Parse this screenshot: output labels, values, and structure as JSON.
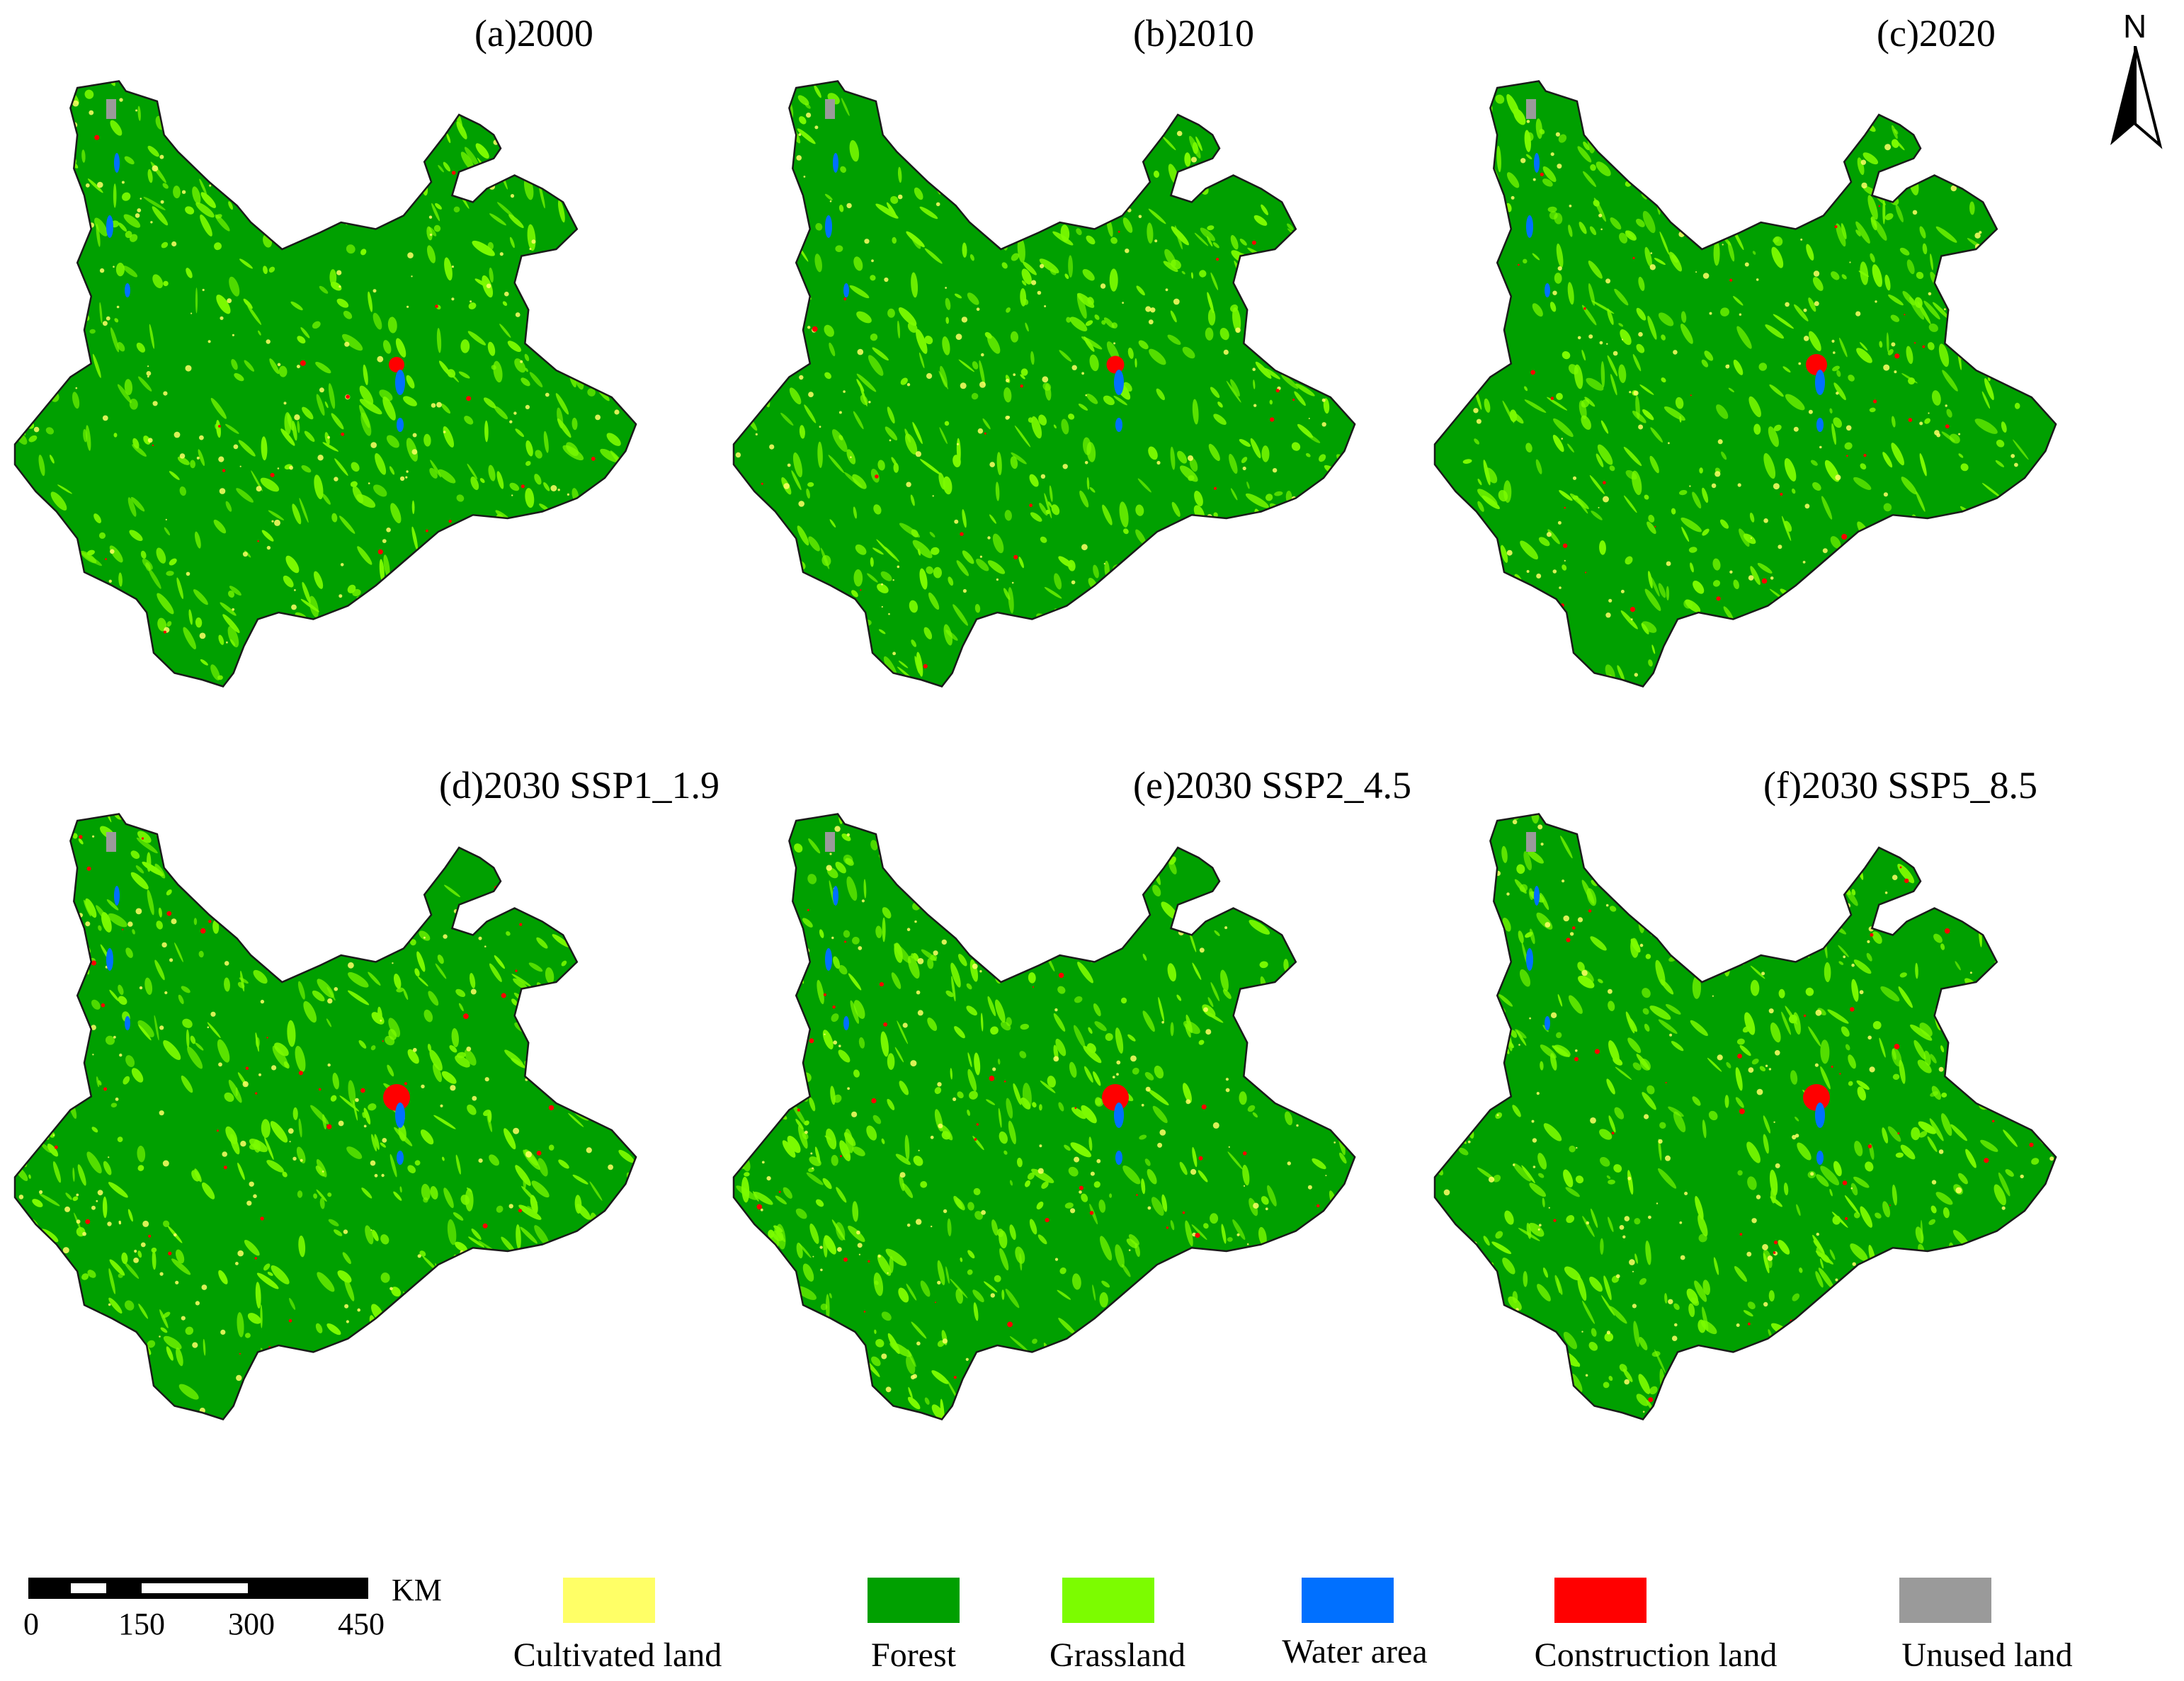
{
  "panels": [
    {
      "id": "a",
      "title": "(a)2000",
      "construction_level": 1
    },
    {
      "id": "b",
      "title": "(b)2010",
      "construction_level": 1.3
    },
    {
      "id": "c",
      "title": "(c)2020",
      "construction_level": 1.8
    },
    {
      "id": "d",
      "title": "(d)2030 SSP1_1.9",
      "construction_level": 2.6
    },
    {
      "id": "e",
      "title": "(e)2030 SSP2_4.5",
      "construction_level": 2.6
    },
    {
      "id": "f",
      "title": "(f)2030 SSP5_8.5",
      "construction_level": 2.6
    }
  ],
  "north_arrow": {
    "label": "N"
  },
  "scale_bar": {
    "unit": "KM",
    "ticks": [
      "0",
      "150",
      "300",
      "450"
    ]
  },
  "legend": [
    {
      "label": "Cultivated land",
      "color": "#ffff66"
    },
    {
      "label": "Forest",
      "color": "#00a000"
    },
    {
      "label": "Grassland",
      "color": "#7cfc00"
    },
    {
      "label": "Water area",
      "color": "#0070ff"
    },
    {
      "label": "Construction land",
      "color": "#ff0000"
    },
    {
      "label": "Unused land",
      "color": "#9a9a9a"
    }
  ]
}
